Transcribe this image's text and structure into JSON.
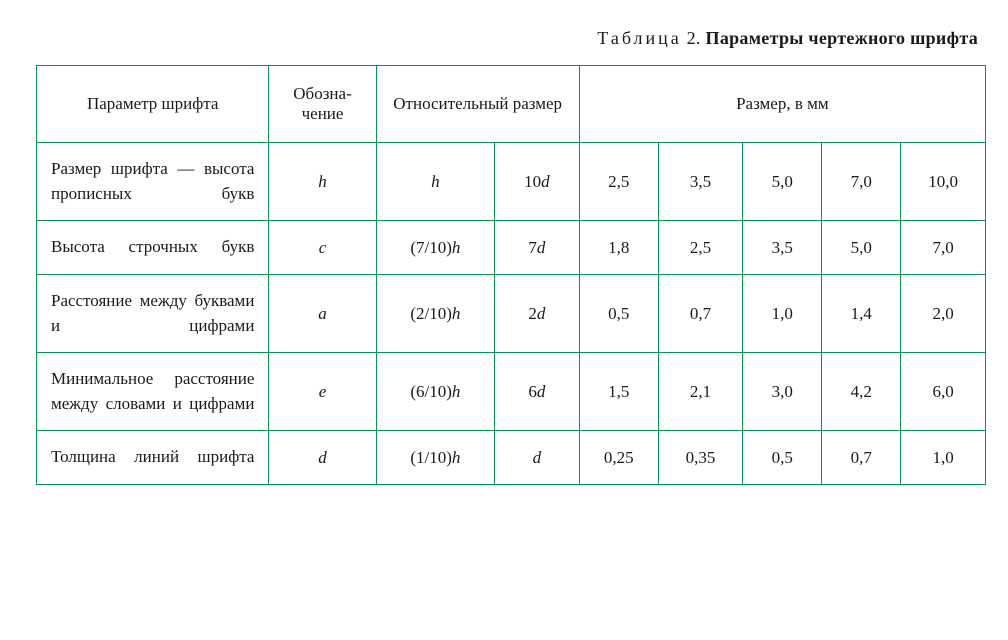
{
  "caption": {
    "label_spaced": "Таблица",
    "number": "2.",
    "title": "Параметры чертежного шрифта"
  },
  "table": {
    "border_color": "#0a9358",
    "font_color": "#1a1a1a",
    "header_fontsize": 17,
    "body_fontsize": 17,
    "columns": {
      "param": "Параметр шрифта",
      "ozn": "Обозна­чение",
      "rel": "Относительный размер",
      "mm": "Размер, в мм"
    },
    "rows": [
      {
        "param": "Размер шрифта — высота прописных букв",
        "ozn": "h",
        "rel1": "h",
        "rel2_num": "10",
        "rel2_sym": "d",
        "mm": [
          "2,5",
          "3,5",
          "5,0",
          "7,0",
          "10,0"
        ]
      },
      {
        "param": "Высота строчных букв",
        "ozn": "c",
        "rel1_pre": "(7/10)",
        "rel1_sym": "h",
        "rel2_num": "7",
        "rel2_sym": "d",
        "mm": [
          "1,8",
          "2,5",
          "3,5",
          "5,0",
          "7,0"
        ]
      },
      {
        "param": "Расстояние меж­ду буквами и циф­рами",
        "ozn": "a",
        "rel1_pre": "(2/10)",
        "rel1_sym": "h",
        "rel2_num": "2",
        "rel2_sym": "d",
        "mm": [
          "0,5",
          "0,7",
          "1,0",
          "1,4",
          "2,0"
        ]
      },
      {
        "param": "Минимальное рас­стояние между сло­вами и цифрами",
        "ozn": "e",
        "rel1_pre": "(6/10)",
        "rel1_sym": "h",
        "rel2_num": "6",
        "rel2_sym": "d",
        "mm": [
          "1,5",
          "2,1",
          "3,0",
          "4,2",
          "6,0"
        ]
      },
      {
        "param": "Толщина линий шрифта",
        "ozn": "d",
        "rel1_pre": "(1/10)",
        "rel1_sym": "h",
        "rel2_sym": "d",
        "mm": [
          "0,25",
          "0,35",
          "0,5",
          "0,7",
          "1,0"
        ]
      }
    ]
  }
}
